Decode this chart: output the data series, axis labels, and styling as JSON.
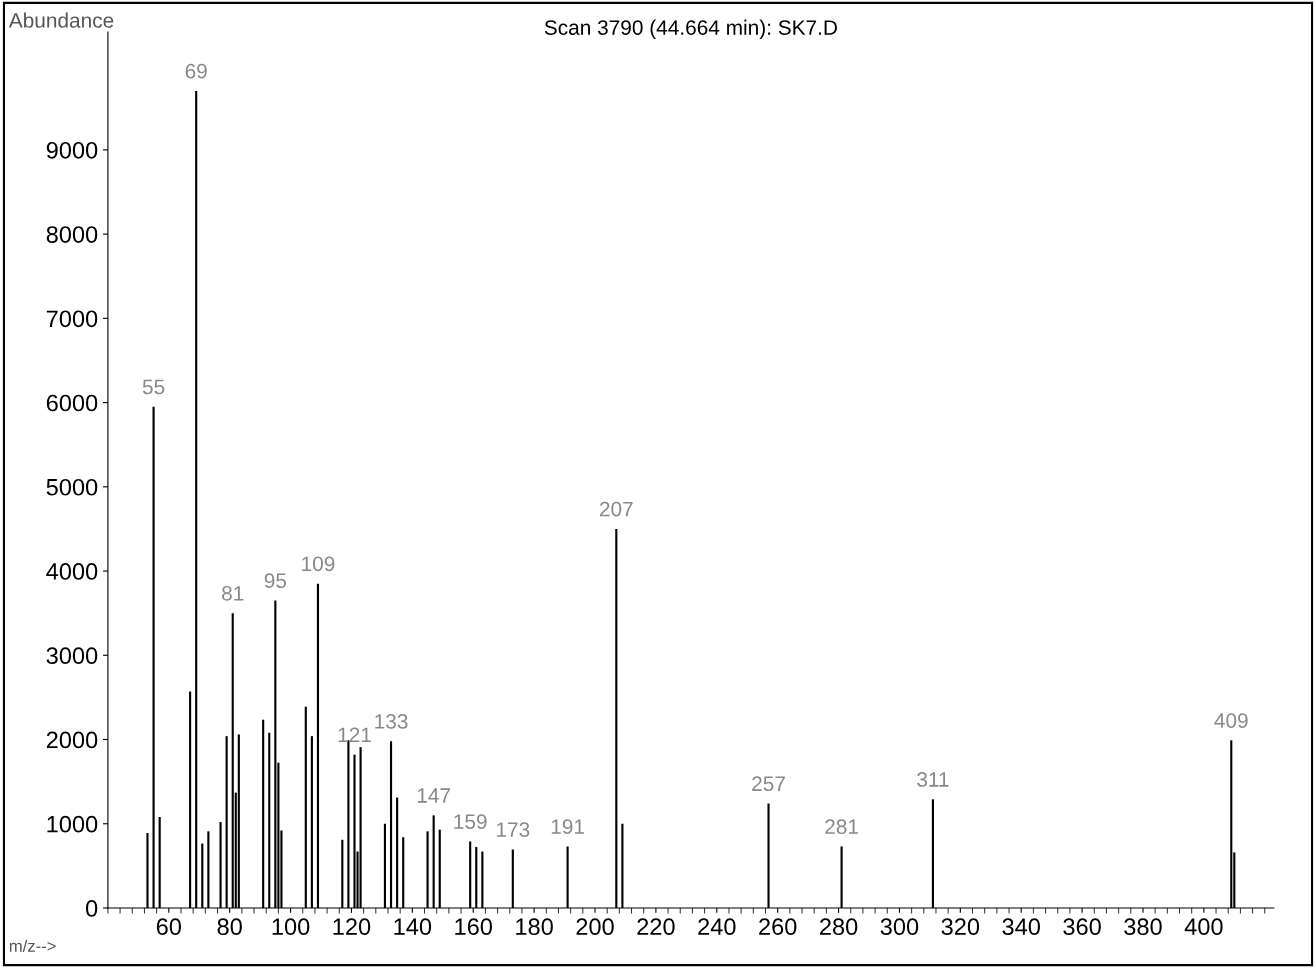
{
  "chart_data": {
    "type": "bar",
    "title": "Scan 3790 (44.664 min): SK7.D",
    "xlabel": "m/z-->",
    "ylabel": "Abundance",
    "x": [
      53,
      55,
      57,
      67,
      69,
      71,
      73,
      77,
      79,
      81,
      82,
      83,
      91,
      93,
      95,
      96,
      97,
      105,
      107,
      109,
      117,
      119,
      121,
      122,
      123,
      131,
      133,
      135,
      137,
      145,
      147,
      149,
      159,
      161,
      163,
      173,
      191,
      207,
      209,
      257,
      281,
      311,
      409,
      410
    ],
    "values": [
      890,
      5950,
      1080,
      2570,
      9700,
      765,
      910,
      1020,
      2040,
      3500,
      1370,
      2060,
      2235,
      2080,
      3650,
      1725,
      920,
      2390,
      2040,
      3850,
      810,
      1990,
      1820,
      670,
      1910,
      1000,
      1980,
      1310,
      840,
      910,
      1100,
      930,
      790,
      725,
      670,
      695,
      730,
      4500,
      1000,
      1240,
      730,
      1290,
      1990,
      660
    ],
    "color": "#000000",
    "xlim": [
      40,
      423
    ],
    "ylim": [
      0,
      10400
    ],
    "xticks": [
      60,
      80,
      100,
      120,
      140,
      160,
      180,
      200,
      220,
      240,
      260,
      280,
      300,
      320,
      340,
      360,
      380,
      400
    ],
    "yticks": [
      0,
      1000,
      2000,
      3000,
      4000,
      5000,
      6000,
      7000,
      8000,
      9000
    ],
    "grid": false,
    "annotations": [
      {
        "text": "55",
        "x": 55,
        "y": 5950
      },
      {
        "text": "69",
        "x": 69,
        "y": 9700
      },
      {
        "text": "81",
        "x": 81,
        "y": 3500
      },
      {
        "text": "95",
        "x": 95,
        "y": 3650
      },
      {
        "text": "109",
        "x": 109,
        "y": 3850
      },
      {
        "text": "121",
        "x": 121,
        "y": 1820
      },
      {
        "text": "133",
        "x": 133,
        "y": 1980
      },
      {
        "text": "147",
        "x": 147,
        "y": 1100
      },
      {
        "text": "159",
        "x": 159,
        "y": 790
      },
      {
        "text": "173",
        "x": 173,
        "y": 695
      },
      {
        "text": "191",
        "x": 191,
        "y": 730
      },
      {
        "text": "207",
        "x": 207,
        "y": 4500
      },
      {
        "text": "257",
        "x": 257,
        "y": 1240
      },
      {
        "text": "281",
        "x": 281,
        "y": 730
      },
      {
        "text": "311",
        "x": 311,
        "y": 1290
      },
      {
        "text": "409",
        "x": 409,
        "y": 1990
      }
    ]
  }
}
